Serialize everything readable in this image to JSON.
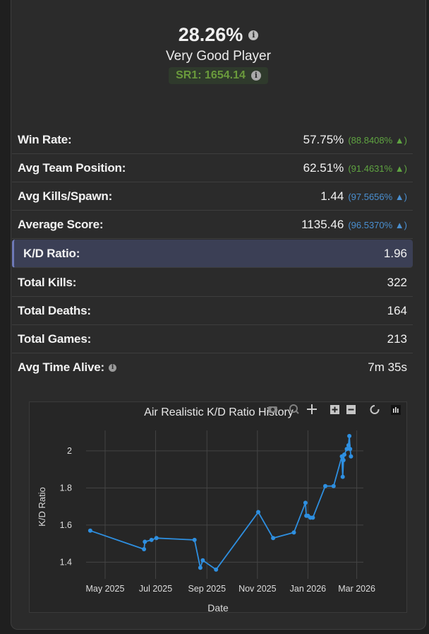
{
  "header": {
    "percent": "28.26%",
    "rank": "Very Good Player",
    "sr": "SR1: 1654.14"
  },
  "stats": [
    {
      "label": "Win Rate:",
      "value": "57.75%",
      "delta": "(88.8408% ▲)",
      "delta_color": "#5fa441"
    },
    {
      "label": "Avg Team Position:",
      "value": "62.51%",
      "delta": "(91.4631% ▲)",
      "delta_color": "#5fa441"
    },
    {
      "label": "Avg Kills/Spawn:",
      "value": "1.44",
      "delta": "(97.5656% ▲)",
      "delta_color": "#4a8fd0"
    },
    {
      "label": "Average Score:",
      "value": "1135.46",
      "delta": "(96.5370% ▲)",
      "delta_color": "#4a8fd0"
    },
    {
      "label": "K/D Ratio:",
      "value": "1.96",
      "highlight": true
    },
    {
      "label": "Total Kills:",
      "value": "322"
    },
    {
      "label": "Total Deaths:",
      "value": "164"
    },
    {
      "label": "Total Games:",
      "value": "213"
    },
    {
      "label": "Avg Time Alive:",
      "value": "7m 35s",
      "info": true
    }
  ],
  "toolbar_icons": [
    "camera-icon",
    "zoom-icon",
    "pan-icon",
    "zoom-in-icon",
    "zoom-out-icon",
    "reset-icon",
    "plotly-logo-icon"
  ],
  "chart_data": {
    "type": "line",
    "title": "Air Realistic K/D Ratio History",
    "xlabel": "Date",
    "ylabel": "K/D Ratio",
    "x_tick_labels": [
      "May 2025",
      "Jul 2025",
      "Sep 2025",
      "Nov 2025",
      "Jan 2026",
      "Mar 2026"
    ],
    "x_tick_dates": [
      "2025-05-01",
      "2025-07-01",
      "2025-09-01",
      "2025-11-01",
      "2026-01-01",
      "2026-03-01"
    ],
    "y_tick_labels": [
      "1.4",
      "1.6",
      "1.8",
      "2"
    ],
    "y_ticks": [
      1.4,
      1.6,
      1.8,
      2.0
    ],
    "xlim": [
      "2025-04-08",
      "2026-03-09"
    ],
    "ylim": [
      1.31,
      2.11
    ],
    "grid": true,
    "line_color": "#2e8fe0",
    "series": [
      {
        "x": [
          "2025-04-13",
          "2025-06-17",
          "2025-06-18",
          "2025-06-26",
          "2025-07-02",
          "2025-08-17",
          "2025-08-24",
          "2025-08-27",
          "2025-09-12",
          "2025-11-02",
          "2025-11-20",
          "2025-12-15",
          "2025-12-29",
          "2025-12-30",
          "2026-01-01",
          "2026-01-04",
          "2026-01-07",
          "2026-01-22",
          "2026-02-01",
          "2026-02-11",
          "2026-02-12",
          "2026-02-13",
          "2026-02-14",
          "2026-02-17",
          "2026-02-19",
          "2026-02-20",
          "2026-02-21",
          "2026-02-22"
        ],
        "y": [
          1.57,
          1.47,
          1.51,
          1.52,
          1.53,
          1.52,
          1.37,
          1.41,
          1.36,
          1.67,
          1.53,
          1.56,
          1.72,
          1.65,
          1.65,
          1.64,
          1.64,
          1.81,
          1.81,
          1.97,
          1.86,
          1.95,
          1.98,
          2.01,
          2.03,
          2.08,
          2.01,
          1.97
        ]
      }
    ]
  }
}
